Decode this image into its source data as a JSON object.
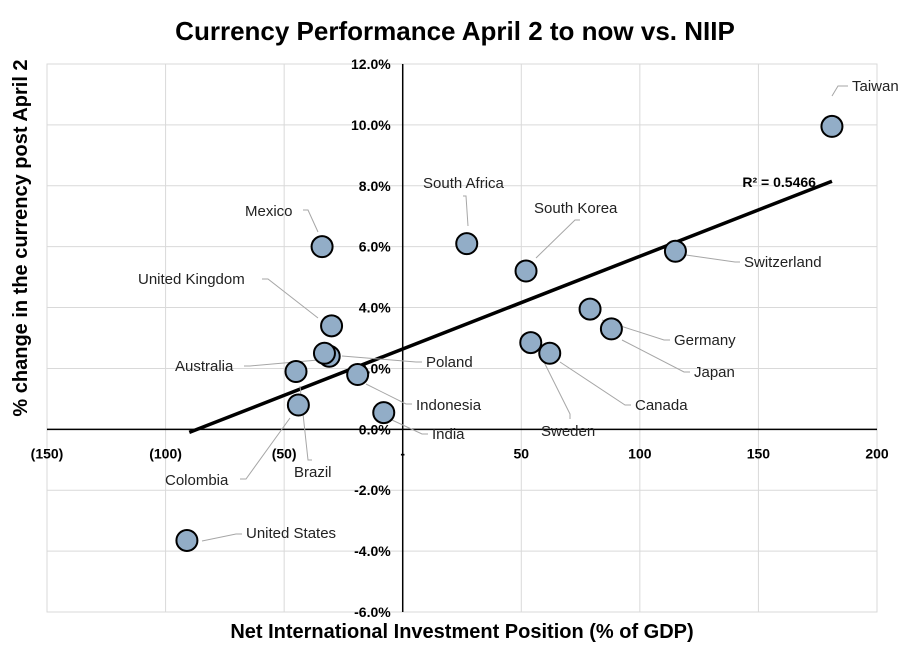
{
  "chart_data": {
    "type": "scatter",
    "title": "Currency Performance April 2 to now vs. NIIP",
    "xlabel": "Net International Investment Position (% of GDP)",
    "ylabel": "% change in the currency post April 2",
    "xlim": [
      -150,
      200
    ],
    "ylim": [
      -6,
      12
    ],
    "x_ticks": [
      {
        "value": -150,
        "label": "(150)"
      },
      {
        "value": -100,
        "label": "(100)"
      },
      {
        "value": -50,
        "label": "(50)"
      },
      {
        "value": 0,
        "label": "-"
      },
      {
        "value": 50,
        "label": "50"
      },
      {
        "value": 100,
        "label": "100"
      },
      {
        "value": 150,
        "label": "150"
      },
      {
        "value": 200,
        "label": "200"
      }
    ],
    "y_ticks": [
      {
        "value": 12,
        "label": "12.0%"
      },
      {
        "value": 10,
        "label": "10.0%"
      },
      {
        "value": 8,
        "label": "8.0%"
      },
      {
        "value": 6,
        "label": "6.0%"
      },
      {
        "value": 4,
        "label": "4.0%"
      },
      {
        "value": 2,
        "label": "2.0%"
      },
      {
        "value": 0,
        "label": "0.0%"
      },
      {
        "value": -2,
        "label": "-2.0%"
      },
      {
        "value": -4,
        "label": "-4.0%"
      },
      {
        "value": -6,
        "label": "-6.0%"
      }
    ],
    "grid": true,
    "points": [
      {
        "name": "Taiwan",
        "x": 181,
        "y": 9.95
      },
      {
        "name": "South Africa",
        "x": 27,
        "y": 6.1
      },
      {
        "name": "South Korea",
        "x": 52,
        "y": 5.2
      },
      {
        "name": "Switzerland",
        "x": 115,
        "y": 5.85
      },
      {
        "name": "Mexico",
        "x": -34,
        "y": 6.0
      },
      {
        "name": "United Kingdom",
        "x": -30,
        "y": 3.4
      },
      {
        "name": "Poland",
        "x": -31,
        "y": 2.4
      },
      {
        "name": "Australia",
        "x": -45,
        "y": 1.9
      },
      {
        "name": "Indonesia",
        "x": -19,
        "y": 1.8
      },
      {
        "name": "India",
        "x": -8,
        "y": 0.55
      },
      {
        "name": "Colombia",
        "x": -44,
        "y": 0.8
      },
      {
        "name": "Brazil",
        "x": -33,
        "y": 2.5
      },
      {
        "name": "Germany",
        "x": 79,
        "y": 3.95
      },
      {
        "name": "Japan",
        "x": 88,
        "y": 3.3
      },
      {
        "name": "Canada",
        "x": 62,
        "y": 2.5
      },
      {
        "name": "Sweden",
        "x": 54,
        "y": 2.85
      },
      {
        "name": "United States",
        "x": -91,
        "y": -3.65
      }
    ],
    "trendline": {
      "x": [
        -90,
        181
      ],
      "y": [
        -0.1,
        8.15
      ],
      "label": "R² = 0.5466"
    },
    "marker_color": "#92adc7"
  }
}
